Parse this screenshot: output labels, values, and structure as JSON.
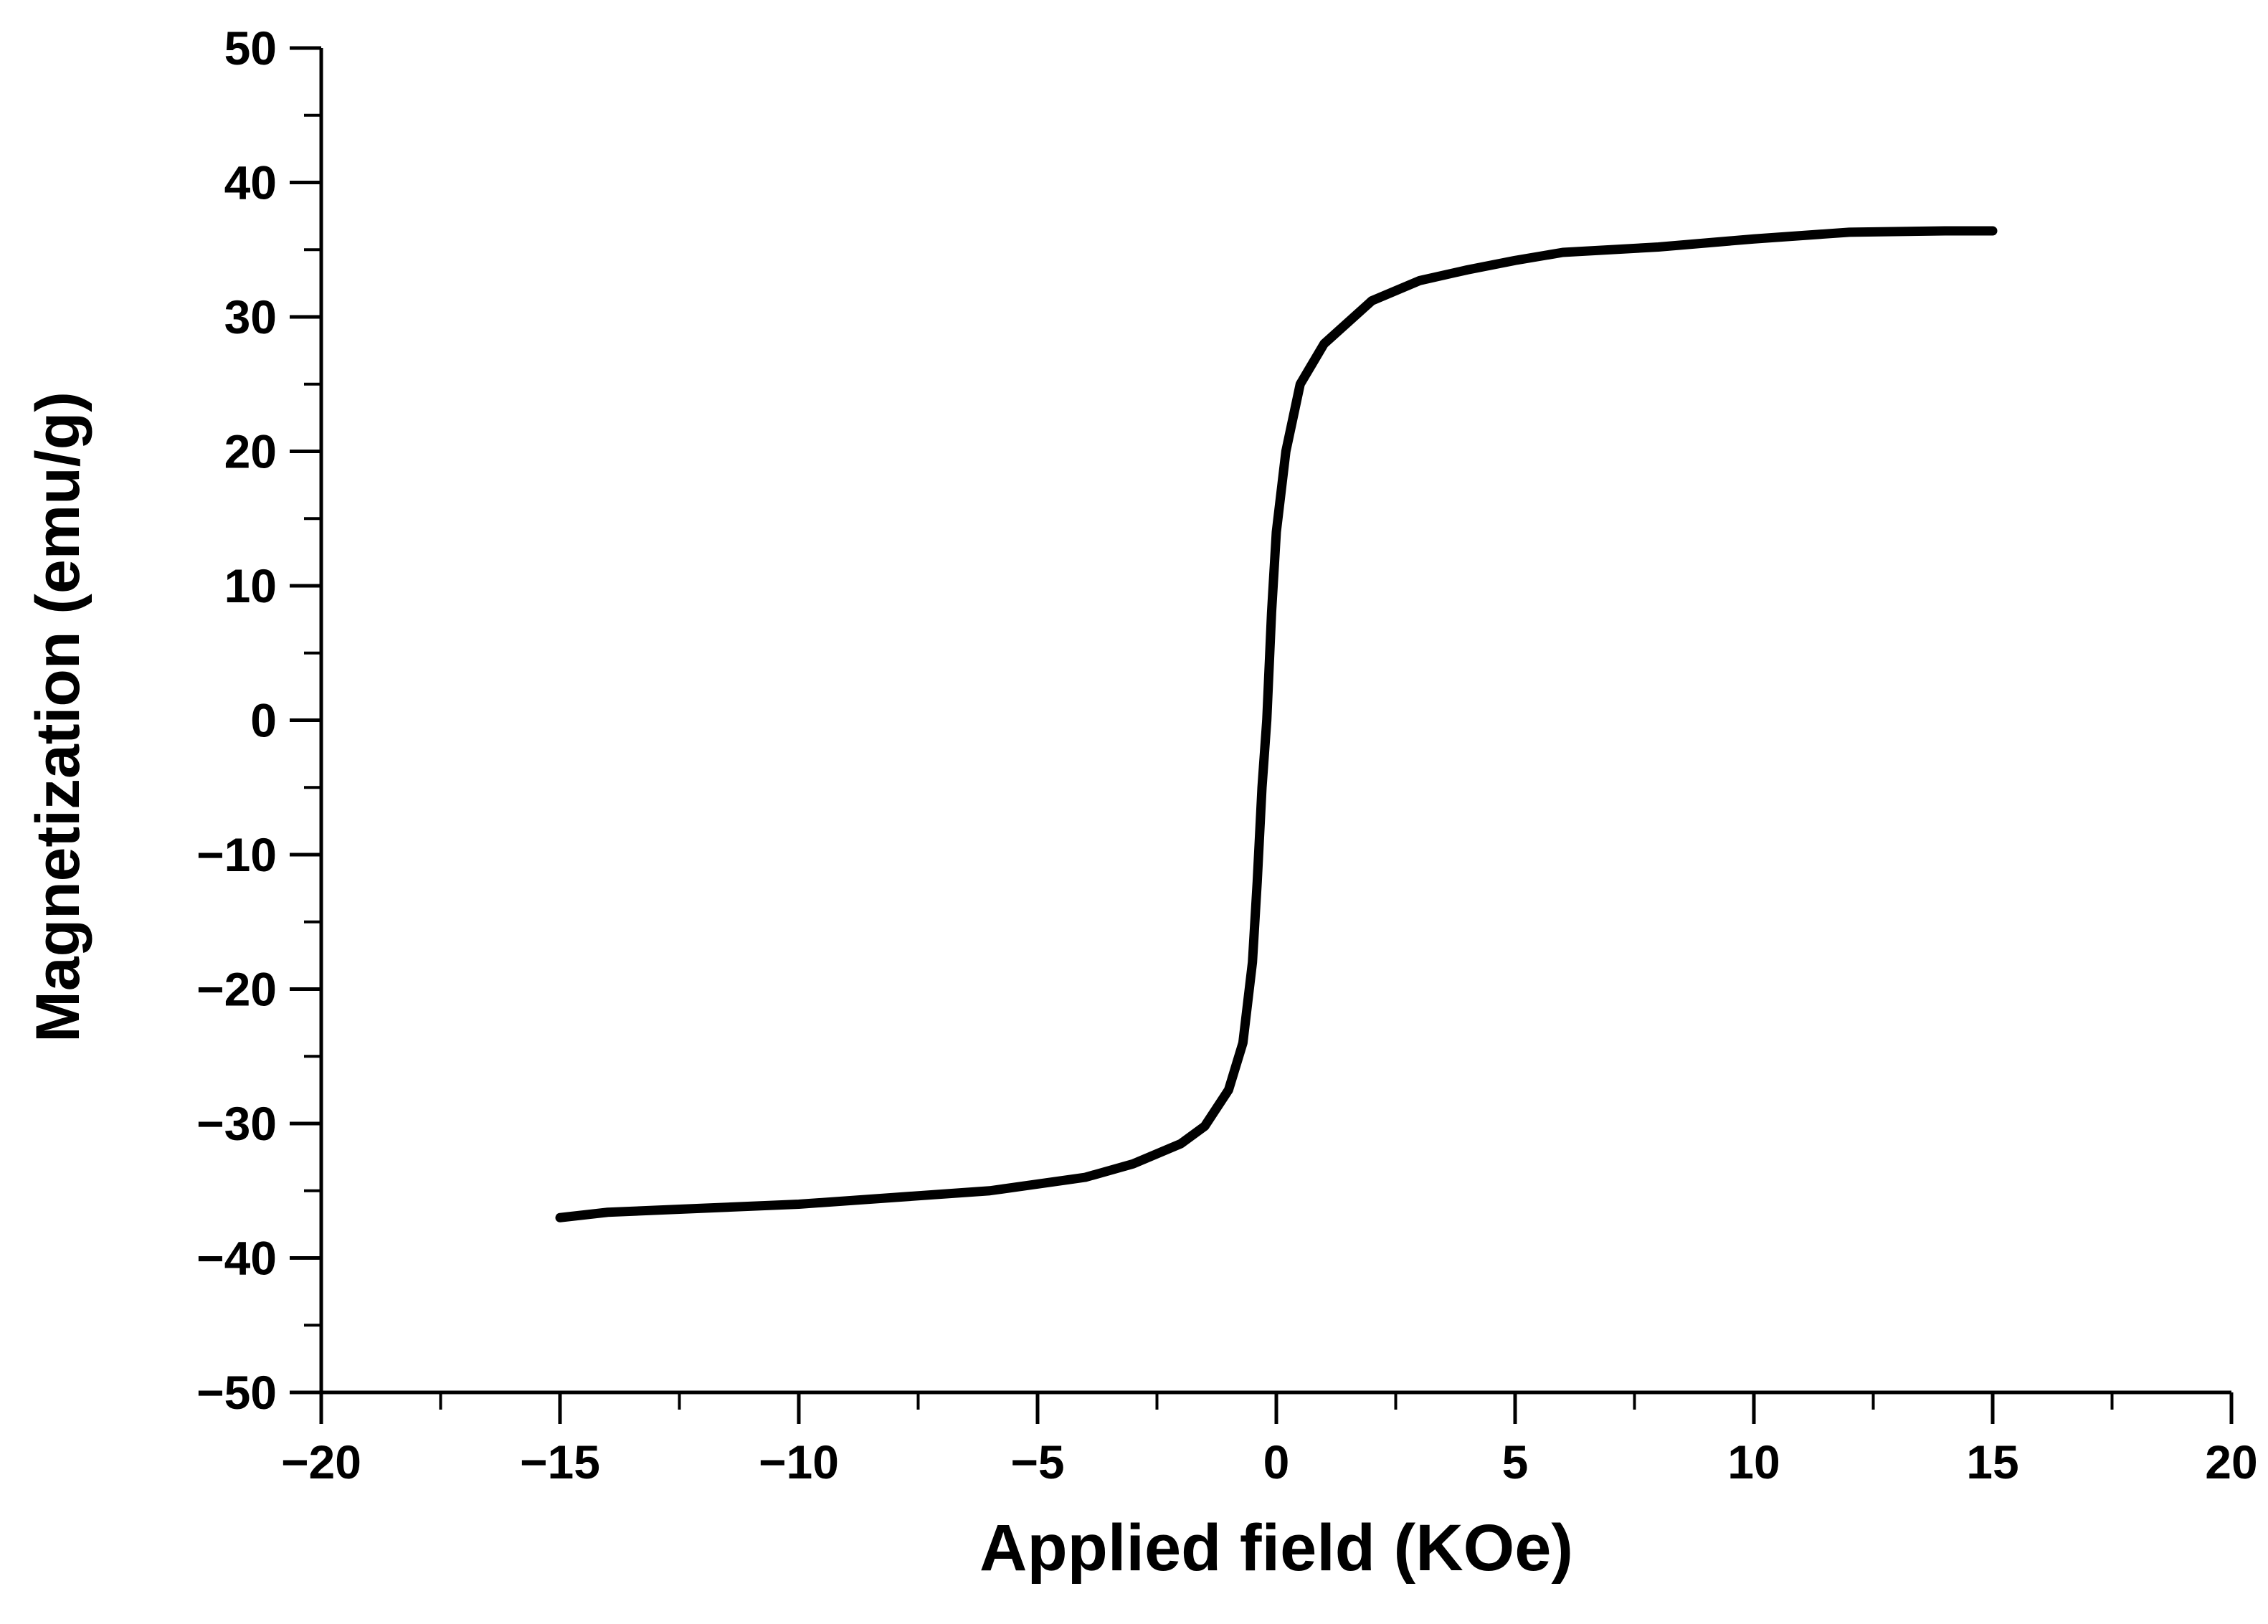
{
  "chart_data": {
    "type": "line",
    "x_label": "Applied field (KOe)",
    "y_label": "Magnetization (emu/g)",
    "x": [
      -15,
      -14,
      -12,
      -10,
      -8,
      -6,
      -4,
      -3,
      -2,
      -1.5,
      -1,
      -0.7,
      -0.5,
      -0.4,
      -0.3,
      -0.2,
      -0.1,
      0,
      0.2,
      0.5,
      1,
      2,
      3,
      4,
      5,
      6,
      8,
      10,
      12,
      14,
      15
    ],
    "series": [
      {
        "color": "#000000",
        "values": [
          -37,
          -36.6,
          -36.3,
          -36,
          -35.5,
          -35,
          -34,
          -33,
          -31.5,
          -30.2,
          -27.5,
          -24,
          -18,
          -12,
          -5,
          0,
          8,
          14,
          20,
          25,
          28,
          31.2,
          32.7,
          33.5,
          34.2,
          34.8,
          35.2,
          35.8,
          36.3,
          36.4,
          36.4
        ]
      }
    ],
    "xlim": [
      -20,
      20
    ],
    "ylim": [
      -50,
      50
    ],
    "xticks": [
      {
        "value": -20,
        "label": "−20"
      },
      {
        "value": -15,
        "label": "−15"
      },
      {
        "value": -10,
        "label": "−10"
      },
      {
        "value": -5,
        "label": "−5"
      },
      0,
      5,
      10,
      15,
      20
    ],
    "yticks": [
      {
        "value": -50,
        "label": "−50"
      },
      {
        "value": -40,
        "label": "−40"
      },
      {
        "value": -30,
        "label": "−30"
      },
      {
        "value": -20,
        "label": "−20"
      },
      {
        "value": -10,
        "label": "−10"
      },
      0,
      10,
      20,
      30,
      40,
      50
    ],
    "grid": false
  }
}
